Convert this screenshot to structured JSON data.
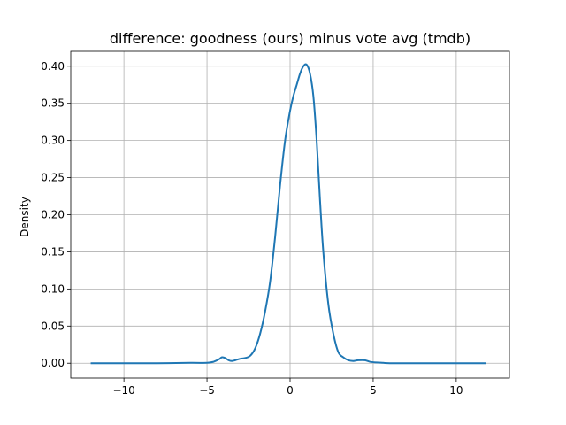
{
  "chart_data": {
    "type": "line",
    "title": "difference: goodness (ours) minus vote avg (tmdb)",
    "xlabel": "",
    "ylabel": "Density",
    "xlim": [
      -13.2,
      13.2
    ],
    "ylim": [
      -0.02,
      0.42
    ],
    "xticks": [
      -10,
      -5,
      0,
      5,
      10
    ],
    "xtick_labels": [
      "−10",
      "−5",
      "0",
      "5",
      "10"
    ],
    "yticks": [
      0.0,
      0.05,
      0.1,
      0.15,
      0.2,
      0.25,
      0.3,
      0.35,
      0.4
    ],
    "ytick_labels": [
      "0.00",
      "0.05",
      "0.10",
      "0.15",
      "0.20",
      "0.25",
      "0.30",
      "0.35",
      "0.40"
    ],
    "grid": true,
    "line_color": "#1f77b4",
    "series": [
      {
        "x": [
          -12.0,
          -10.0,
          -8.0,
          -6.0,
          -5.0,
          -4.6,
          -4.3,
          -4.1,
          -3.9,
          -3.7,
          -3.5,
          -3.3,
          -3.0,
          -2.7,
          -2.4,
          -2.1,
          -1.8,
          -1.5,
          -1.2,
          -0.9,
          -0.6,
          -0.3,
          0.0,
          0.2,
          0.4,
          0.6,
          0.8,
          1.0,
          1.2,
          1.4,
          1.6,
          1.8,
          2.0,
          2.3,
          2.6,
          2.9,
          3.2,
          3.5,
          3.8,
          4.1,
          4.5,
          4.8,
          5.2,
          5.6,
          6.0,
          7.0,
          8.0,
          10.0,
          11.8
        ],
        "y": [
          0.0,
          0.0,
          0.0,
          0.0005,
          0.0005,
          0.002,
          0.005,
          0.008,
          0.007,
          0.004,
          0.003,
          0.004,
          0.006,
          0.007,
          0.01,
          0.02,
          0.04,
          0.07,
          0.11,
          0.17,
          0.24,
          0.3,
          0.34,
          0.36,
          0.375,
          0.39,
          0.4,
          0.402,
          0.39,
          0.36,
          0.3,
          0.22,
          0.15,
          0.08,
          0.04,
          0.015,
          0.008,
          0.004,
          0.003,
          0.004,
          0.004,
          0.002,
          0.001,
          0.0005,
          0.0,
          0.0,
          0.0,
          0.0,
          0.0
        ]
      }
    ]
  }
}
